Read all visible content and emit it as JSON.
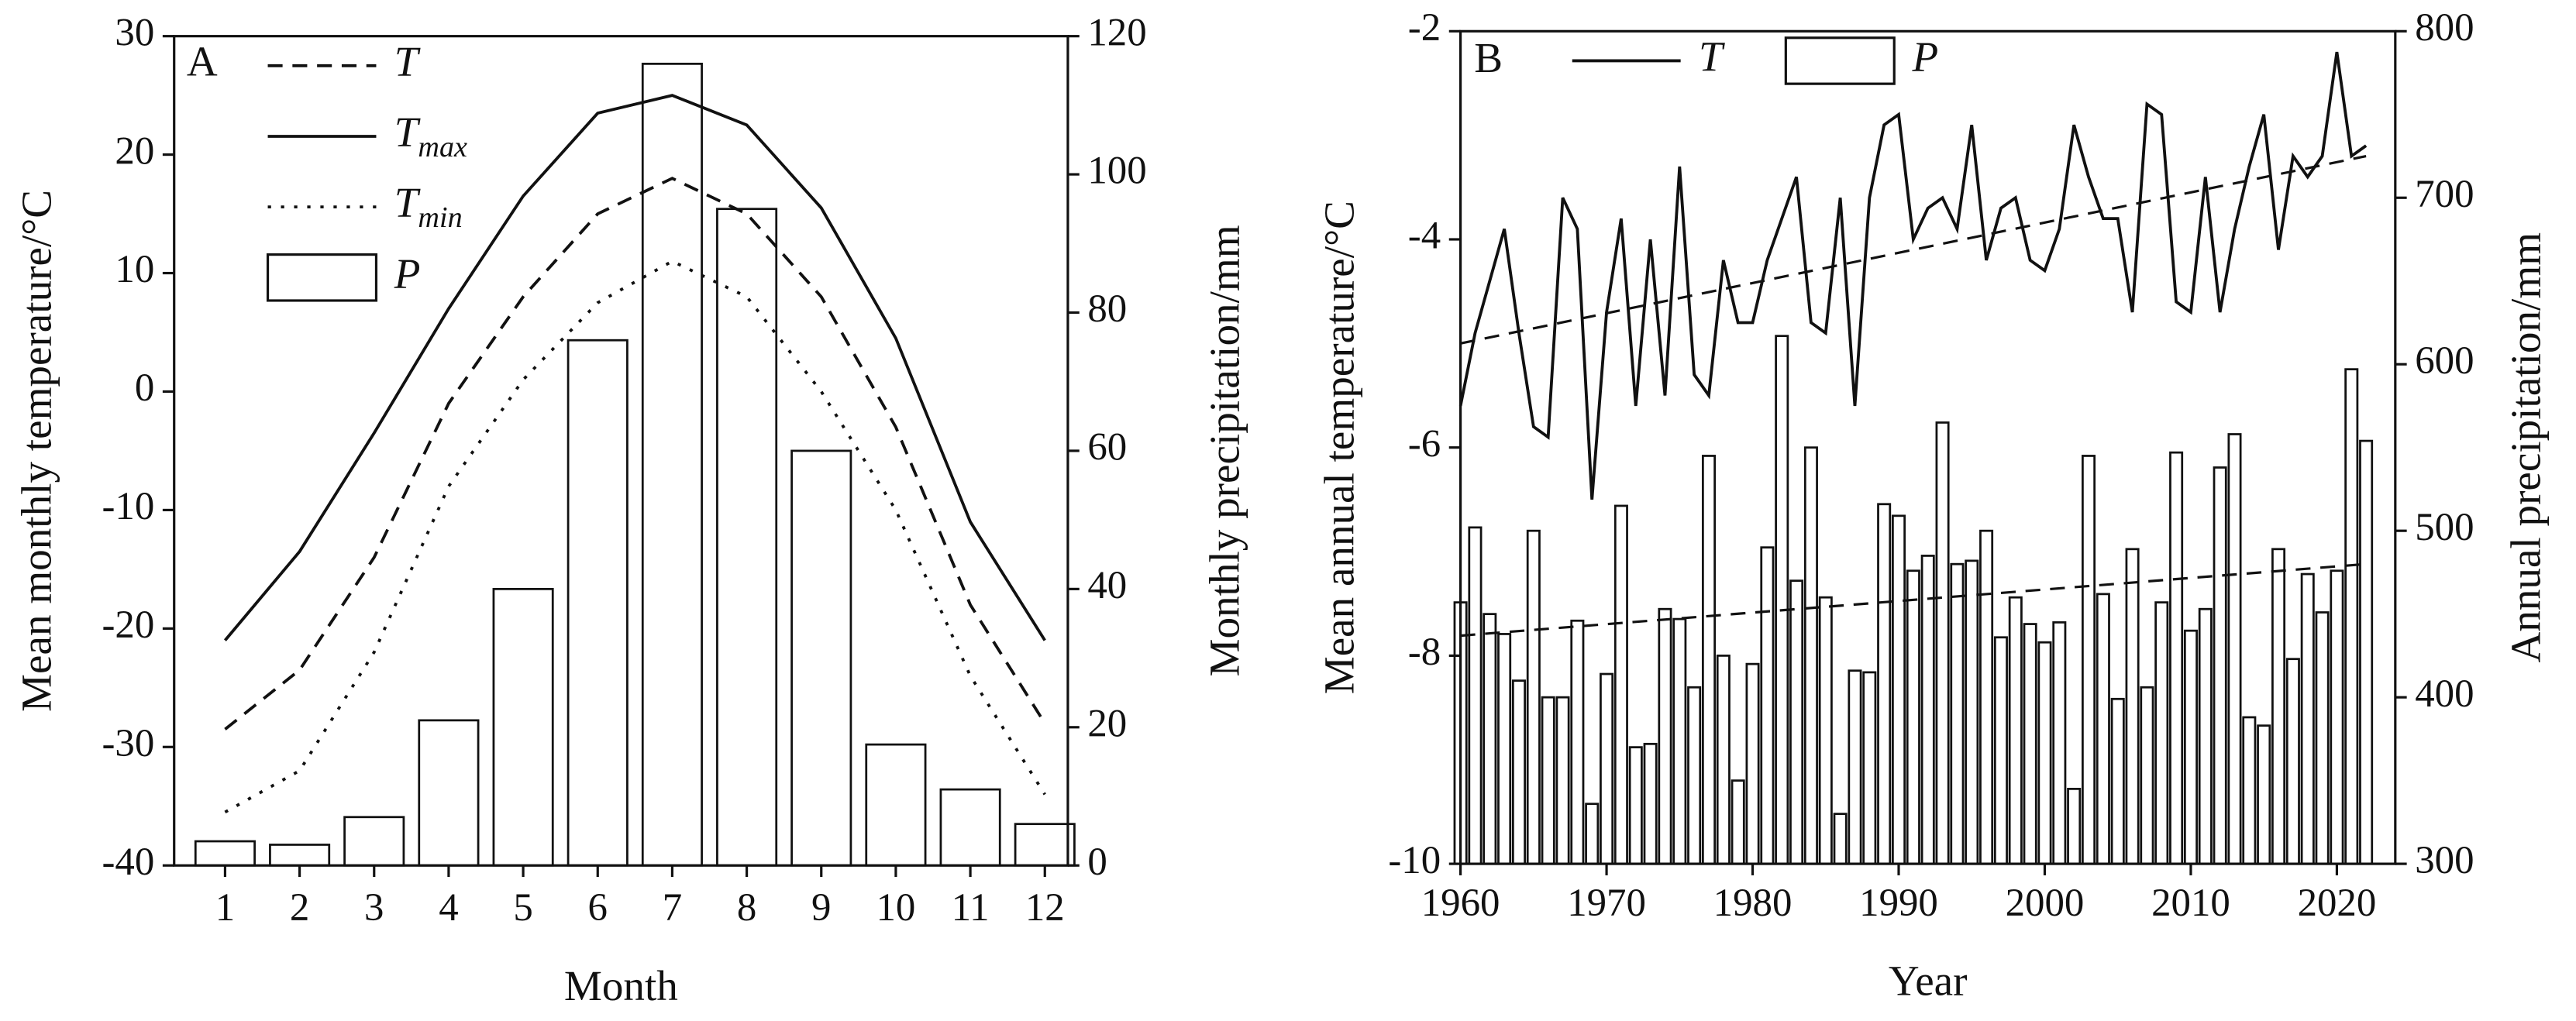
{
  "chart_data": [
    {
      "type": "bar-line",
      "panel": "A",
      "xlabel": "Month",
      "ylabel": "Mean monthly temperature/°C",
      "y2label": "Monthly precipitation/mm",
      "categories": [
        "1",
        "2",
        "3",
        "4",
        "5",
        "6",
        "7",
        "8",
        "9",
        "10",
        "11",
        "12"
      ],
      "ylim": [
        -40,
        30
      ],
      "yticks": [
        -40,
        -30,
        -20,
        -10,
        0,
        10,
        20,
        30
      ],
      "y2lim": [
        0,
        120
      ],
      "y2ticks": [
        0,
        20,
        40,
        60,
        80,
        100,
        120
      ],
      "series": [
        {
          "name": "T",
          "kind": "line",
          "dash": "dashed",
          "color": "#111",
          "values": [
            -28.5,
            -23.5,
            -14,
            -1,
            8,
            15,
            18,
            15,
            8,
            -3,
            -18,
            -28
          ]
        },
        {
          "name": "T",
          "sub": "max",
          "kind": "line",
          "dash": "solid",
          "color": "#111",
          "values": [
            -21,
            -13.5,
            -3.5,
            7,
            16.5,
            23.5,
            25,
            22.5,
            15.5,
            4.5,
            -11,
            -21
          ]
        },
        {
          "name": "T",
          "sub": "min",
          "kind": "line",
          "dash": "dotted",
          "color": "#111",
          "values": [
            -35.5,
            -32,
            -22,
            -8,
            1,
            7.5,
            11,
            8,
            0,
            -10,
            -24,
            -34
          ]
        },
        {
          "name": "P",
          "kind": "bar",
          "axis": "y2",
          "color": "#ffffff",
          "values": [
            3.5,
            3,
            7,
            21,
            40,
            76,
            116,
            95,
            60,
            17.5,
            11,
            6
          ]
        }
      ]
    },
    {
      "type": "bar-line",
      "panel": "B",
      "xlabel": "Year",
      "ylabel": "Mean annual temperature/°C",
      "y2label": "Annual precipitation/mm",
      "x": [
        1960,
        1961,
        1962,
        1963,
        1964,
        1965,
        1966,
        1967,
        1968,
        1969,
        1970,
        1971,
        1972,
        1973,
        1974,
        1975,
        1976,
        1977,
        1978,
        1979,
        1980,
        1981,
        1982,
        1983,
        1984,
        1985,
        1986,
        1987,
        1988,
        1989,
        1990,
        1991,
        1992,
        1993,
        1994,
        1995,
        1996,
        1997,
        1998,
        1999,
        2000,
        2001,
        2002,
        2003,
        2004,
        2005,
        2006,
        2007,
        2008,
        2009,
        2010,
        2011,
        2012,
        2013,
        2014,
        2015,
        2016,
        2017,
        2018,
        2019,
        2020,
        2021,
        2022
      ],
      "xlim": [
        1960,
        2024
      ],
      "xticks": [
        1960,
        1970,
        1980,
        1990,
        2000,
        2010,
        2020
      ],
      "ylim": [
        -10,
        -2
      ],
      "yticks": [
        -10,
        -8,
        -6,
        -4,
        -2
      ],
      "y2lim": [
        300,
        800
      ],
      "y2ticks": [
        300,
        400,
        500,
        600,
        700,
        800
      ],
      "series": [
        {
          "name": "T",
          "kind": "line",
          "dash": "solid",
          "color": "#111",
          "values": [
            -5.6,
            -4.9,
            -4.4,
            -3.9,
            -4.9,
            -5.8,
            -5.9,
            -3.6,
            -3.9,
            -6.5,
            -4.7,
            -3.8,
            -5.6,
            -4.0,
            -5.5,
            -3.3,
            -5.3,
            -5.5,
            -4.2,
            -4.8,
            -4.8,
            -4.2,
            -3.8,
            -3.4,
            -4.8,
            -4.9,
            -3.6,
            -5.6,
            -3.6,
            -2.9,
            -2.8,
            -4.0,
            -3.7,
            -3.6,
            -3.9,
            -2.9,
            -4.2,
            -3.7,
            -3.6,
            -4.2,
            -4.3,
            -3.9,
            -2.9,
            -3.4,
            -3.8,
            -3.8,
            -4.7,
            -2.7,
            -2.8,
            -4.6,
            -4.7,
            -3.4,
            -4.7,
            -3.9,
            -3.3,
            -2.8,
            -4.1,
            -3.2,
            -3.4,
            -3.2,
            -2.2,
            -3.2,
            -3.1
          ],
          "trend": {
            "x": [
              1960,
              2022
            ],
            "values": [
              -5.0,
              -3.2
            ]
          }
        },
        {
          "name": "P",
          "kind": "bar",
          "axis": "y2",
          "color": "#ffffff",
          "values": [
            457,
            502,
            450,
            438,
            410,
            500,
            400,
            400,
            446,
            336,
            414,
            515,
            370,
            372,
            453,
            447,
            406,
            545,
            425,
            350,
            420,
            490,
            617,
            470,
            550,
            460,
            330,
            416,
            415,
            516,
            509,
            476,
            485,
            565,
            480,
            482,
            500,
            436,
            460,
            444,
            433,
            445,
            345,
            545,
            462,
            399,
            489,
            406,
            457,
            547,
            440,
            453,
            538,
            558,
            388,
            383,
            489,
            423,
            474,
            451,
            476,
            597,
            554
          ],
          "trend": {
            "x": [
              1960,
              2022
            ],
            "values": [
              437,
              480
            ]
          }
        }
      ]
    }
  ]
}
